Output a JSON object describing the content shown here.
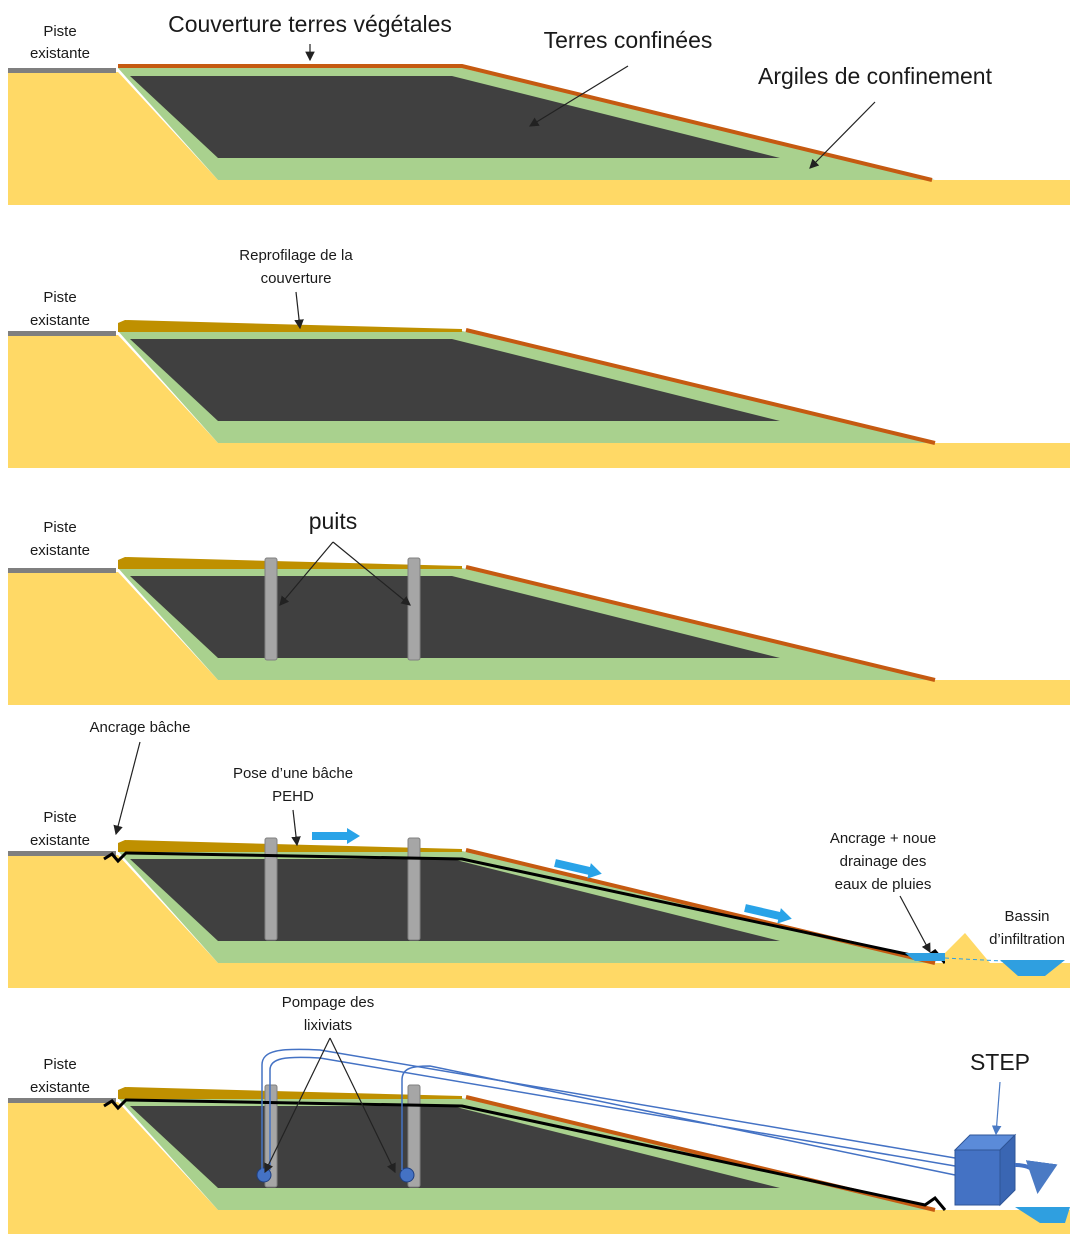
{
  "panels": [
    {
      "piste": [
        "Piste",
        "existante"
      ],
      "labels": [
        {
          "lines": [
            "Couverture terres végétales"
          ]
        },
        {
          "lines": [
            "Terres confinées"
          ]
        },
        {
          "lines": [
            "Argiles de confinement"
          ]
        }
      ]
    },
    {
      "piste": [
        "Piste",
        "existante"
      ],
      "labels": [
        {
          "lines": [
            "Reprofilage de la",
            "couverture"
          ]
        }
      ]
    },
    {
      "piste": [
        "Piste",
        "existante"
      ],
      "labels": [
        {
          "lines": [
            "puits"
          ]
        }
      ]
    },
    {
      "piste": [
        "Piste",
        "existante"
      ],
      "labels": [
        {
          "lines": [
            "Ancrage bâche"
          ]
        },
        {
          "lines": [
            "Pose d’une bâche",
            "PEHD"
          ]
        },
        {
          "lines": [
            "Ancrage + noue",
            "drainage des",
            "eaux de pluies"
          ]
        },
        {
          "lines": [
            "Bassin",
            "d’infiltration"
          ]
        }
      ]
    },
    {
      "piste": [
        "Piste",
        "existante"
      ],
      "labels": [
        {
          "lines": [
            "Pompage des",
            "lixiviats"
          ]
        },
        {
          "lines": [
            "STEP"
          ]
        }
      ]
    }
  ]
}
